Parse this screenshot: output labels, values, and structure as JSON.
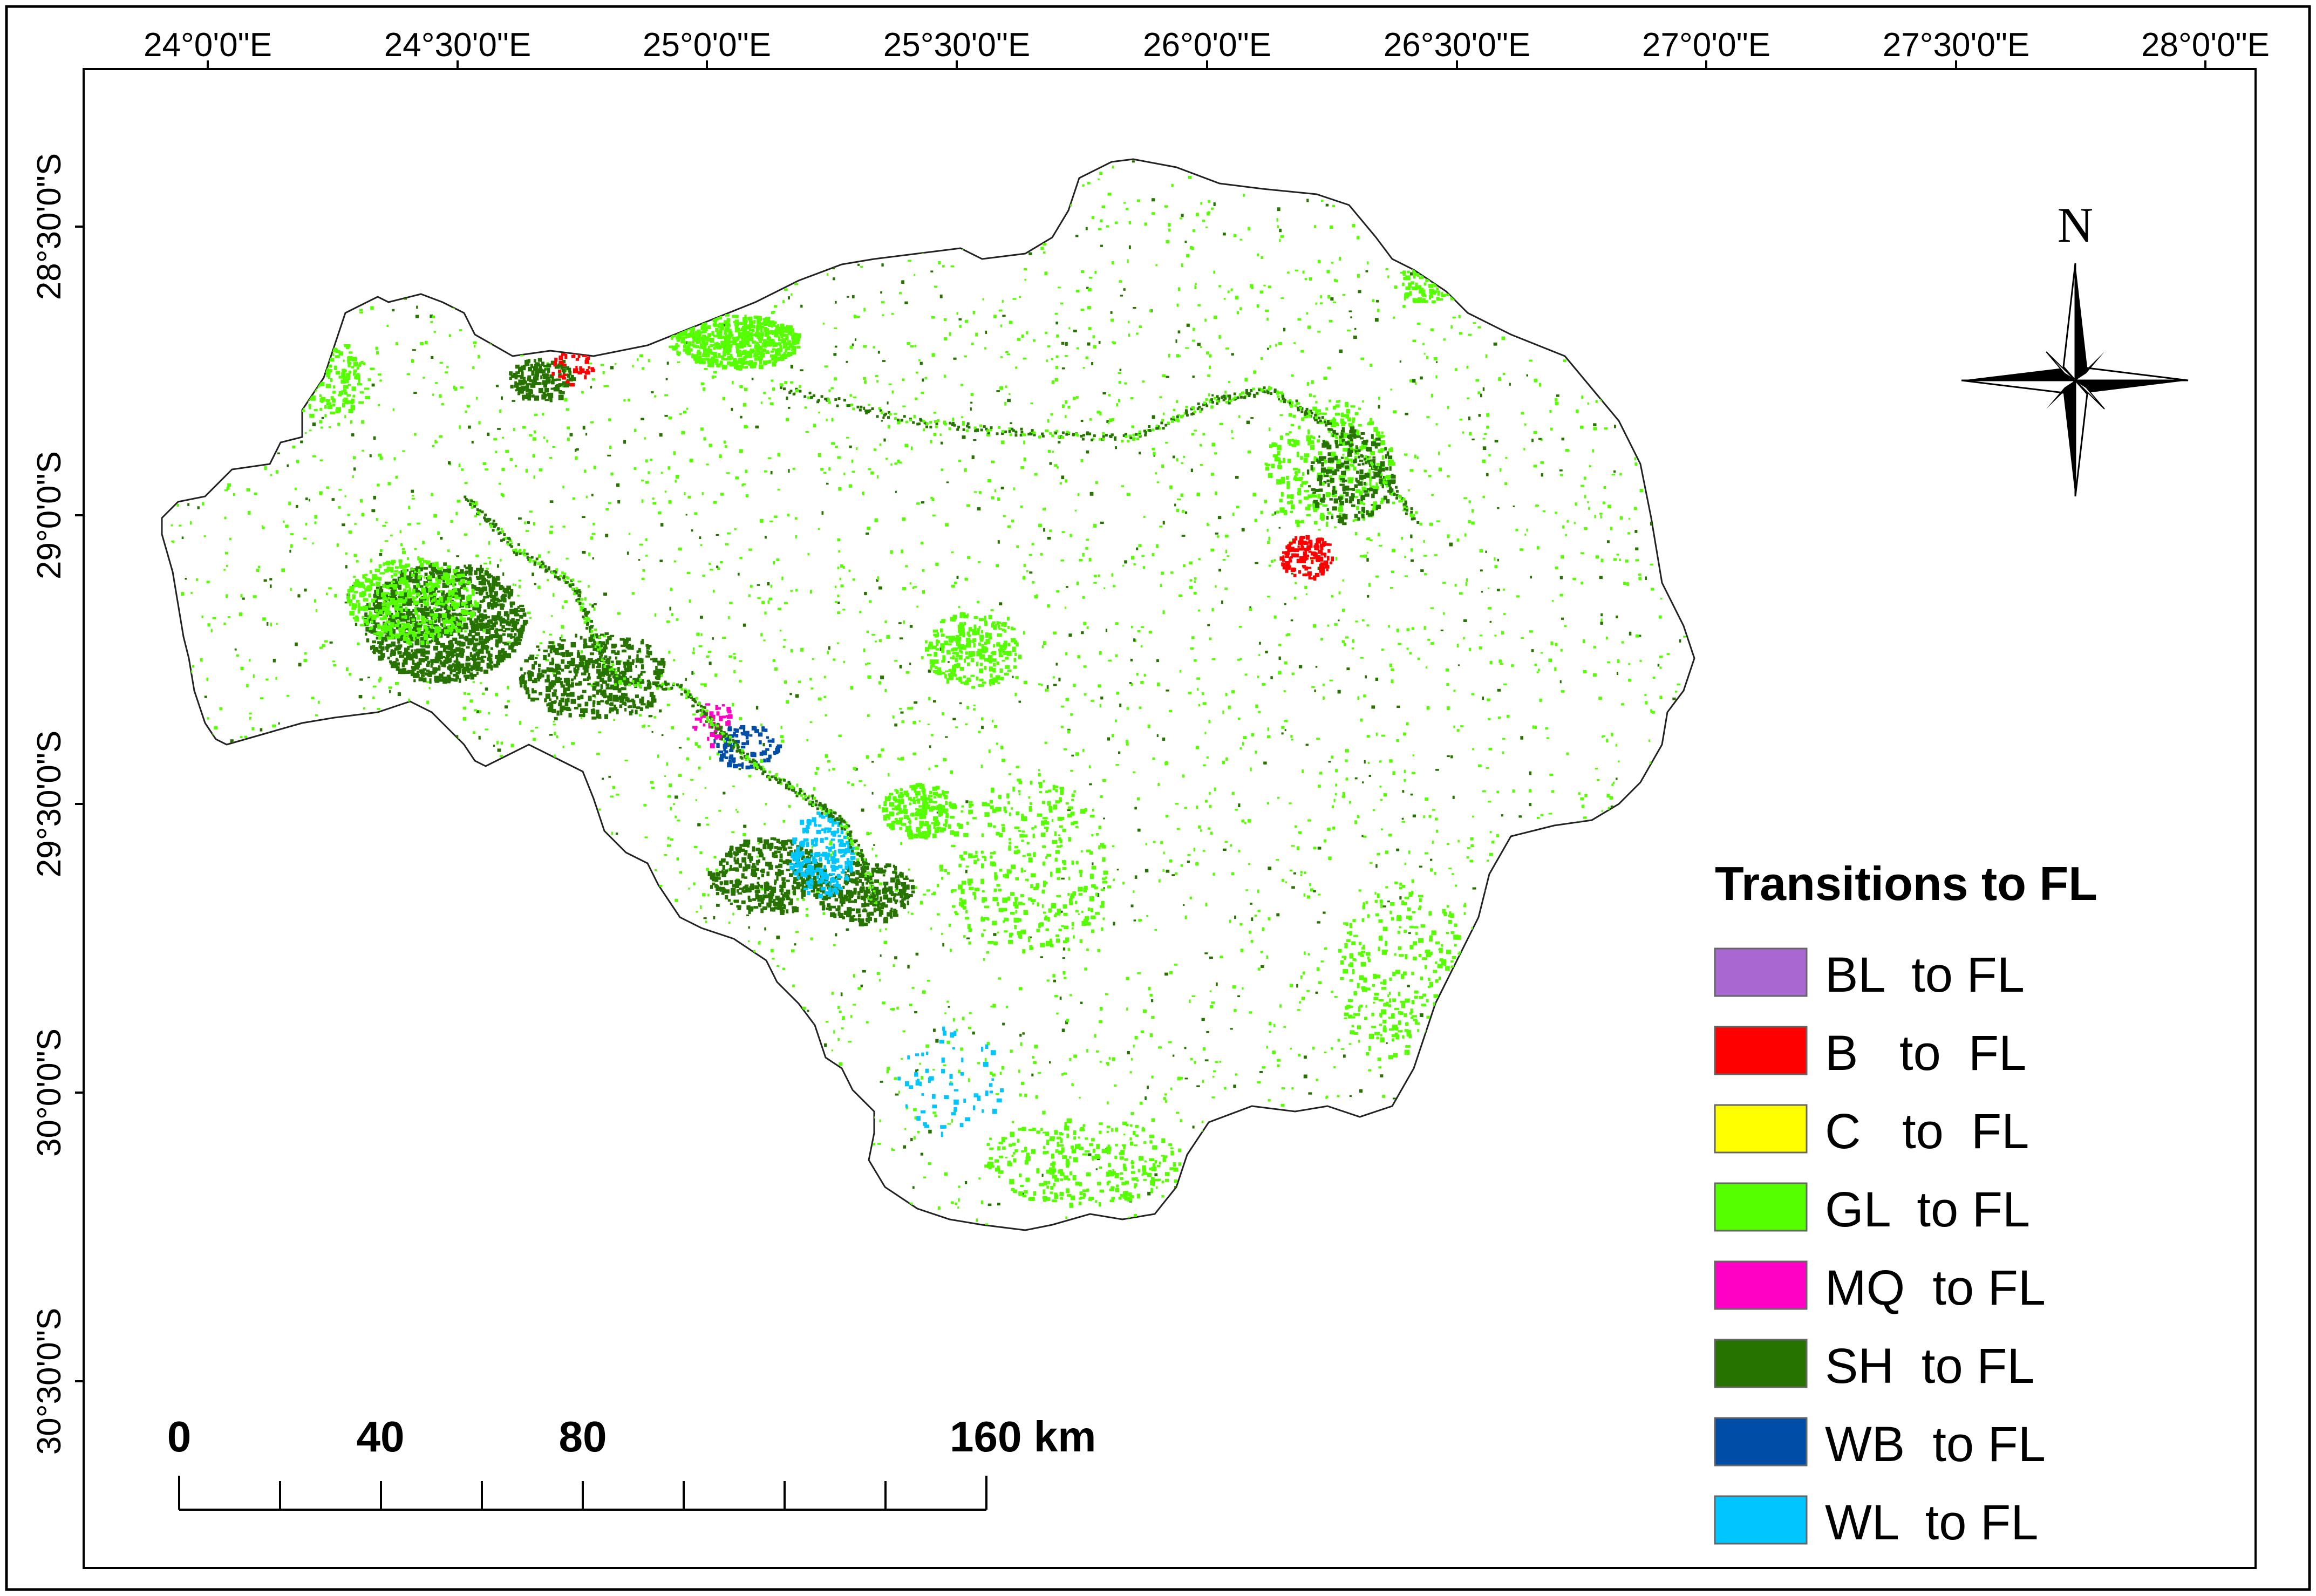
{
  "map": {
    "top_coords": [
      "24°0'0\"E",
      "24°30'0\"E",
      "25°0'0\"E",
      "25°30'0\"E",
      "26°0'0\"E",
      "26°30'0\"E",
      "27°0'0\"E",
      "27°30'0\"E",
      "28°0'0\"E"
    ],
    "left_coords": [
      "28°30'0\"S",
      "29°0'0\"S",
      "29°30'0\"S",
      "30°0'0\"S",
      "30°30'0\"S"
    ],
    "north_label": "N"
  },
  "legend": {
    "title": "Transitions to FL",
    "items": [
      {
        "label": "BL  to FL",
        "color": "#a967d1"
      },
      {
        "label": "B   to  FL",
        "color": "#ff0000"
      },
      {
        "label": "C   to  FL",
        "color": "#ffff00"
      },
      {
        "label": "GL  to FL",
        "color": "#55ff00"
      },
      {
        "label": "MQ  to FL",
        "color": "#ff00c5"
      },
      {
        "label": "SH  to FL",
        "color": "#267300"
      },
      {
        "label": "WB  to FL",
        "color": "#004da8"
      },
      {
        "label": "WL  to FL",
        "color": "#00c5ff"
      }
    ]
  },
  "scale_bar": {
    "labels": [
      "0",
      "40",
      "80",
      "160 km"
    ]
  }
}
